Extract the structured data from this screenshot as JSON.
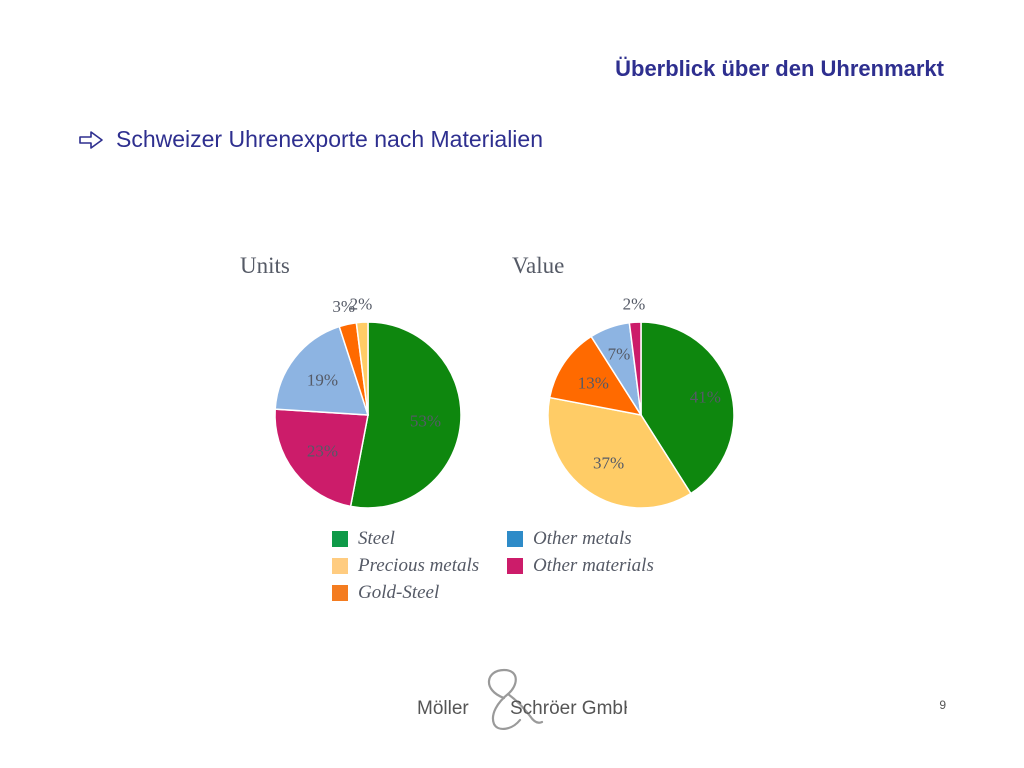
{
  "slide": {
    "title": "Überblick über den Uhrenmarkt",
    "bullet_text": "Schweizer Uhrenexporte nach Materialien",
    "page_number": "9"
  },
  "footer": {
    "logo_left": "Möller",
    "logo_right": "Schröer GmbH"
  },
  "colors": {
    "title": "#2e2f8f",
    "Steel": "#0e870e",
    "Precious metals": "#ffcc66",
    "Gold-Steel": "#ff6a00",
    "Other metals": "#8db4e2",
    "Other materials": "#cc1c6a"
  },
  "legend": [
    {
      "label": "Steel",
      "swatch": "#0e9a48"
    },
    {
      "label": "Other metals",
      "swatch": "#2e8bc8"
    },
    {
      "label": "Precious metals",
      "swatch": "#ffcc80"
    },
    {
      "label": "Other materials",
      "swatch": "#cc1c6a"
    },
    {
      "label": "Gold-Steel",
      "swatch": "#f47c20"
    }
  ],
  "chart_data": [
    {
      "type": "pie",
      "title": "Units",
      "slices": [
        {
          "label": "Steel",
          "value": 53,
          "text": "53%"
        },
        {
          "label": "Other materials",
          "value": 23,
          "text": "23%"
        },
        {
          "label": "Other metals",
          "value": 19,
          "text": "19%"
        },
        {
          "label": "Gold-Steel",
          "value": 3,
          "text": "3%"
        },
        {
          "label": "Precious metals",
          "value": 2,
          "text": "2%"
        }
      ]
    },
    {
      "type": "pie",
      "title": "Value",
      "slices": [
        {
          "label": "Steel",
          "value": 41,
          "text": "41%"
        },
        {
          "label": "Precious metals",
          "value": 37,
          "text": "37%"
        },
        {
          "label": "Gold-Steel",
          "value": 13,
          "text": "13%"
        },
        {
          "label": "Other metals",
          "value": 7,
          "text": "7%"
        },
        {
          "label": "Other materials",
          "value": 2,
          "text": "2%"
        }
      ]
    }
  ]
}
